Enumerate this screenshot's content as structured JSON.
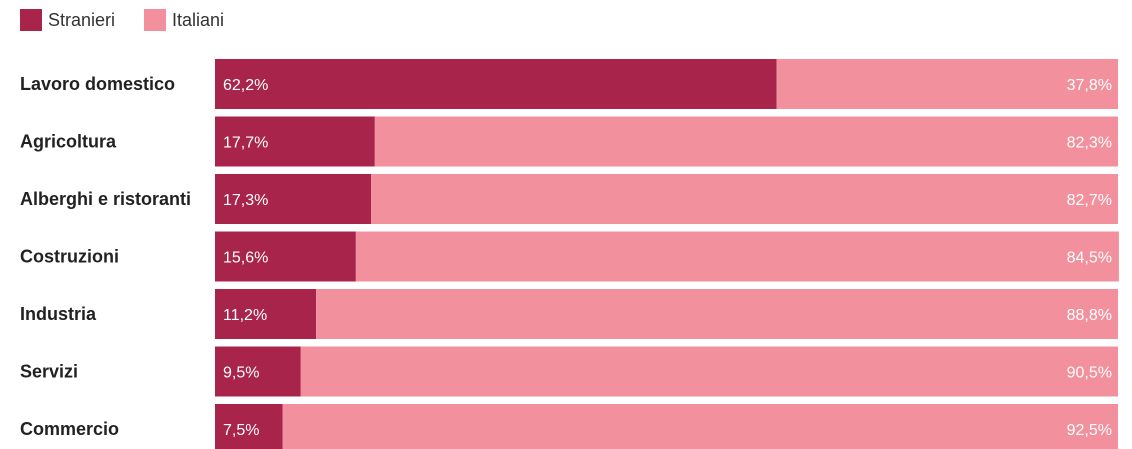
{
  "chart_data": {
    "type": "bar",
    "orientation": "horizontal",
    "stacked": true,
    "normalized_100": true,
    "categories": [
      "Lavoro domestico",
      "Agricoltura",
      "Alberghi e ristoranti",
      "Costruzioni",
      "Industria",
      "Servizi",
      "Commercio"
    ],
    "series": [
      {
        "name": "Stranieri",
        "color": "#a8244a",
        "values": [
          62.2,
          17.7,
          17.3,
          15.6,
          11.2,
          9.5,
          7.5
        ],
        "labels": [
          "62,2%",
          "17,7%",
          "17,3%",
          "15,6%",
          "11,2%",
          "9,5%",
          "7,5%"
        ]
      },
      {
        "name": "Italiani",
        "color": "#f2919d",
        "values": [
          37.8,
          82.3,
          82.7,
          84.5,
          88.8,
          90.5,
          92.5
        ],
        "labels": [
          "37,8%",
          "82,3%",
          "82,7%",
          "84,5%",
          "88,8%",
          "90,5%",
          "92,5%"
        ]
      }
    ],
    "xlim": [
      0,
      100
    ],
    "grid": false,
    "legend_position": "top-left"
  }
}
